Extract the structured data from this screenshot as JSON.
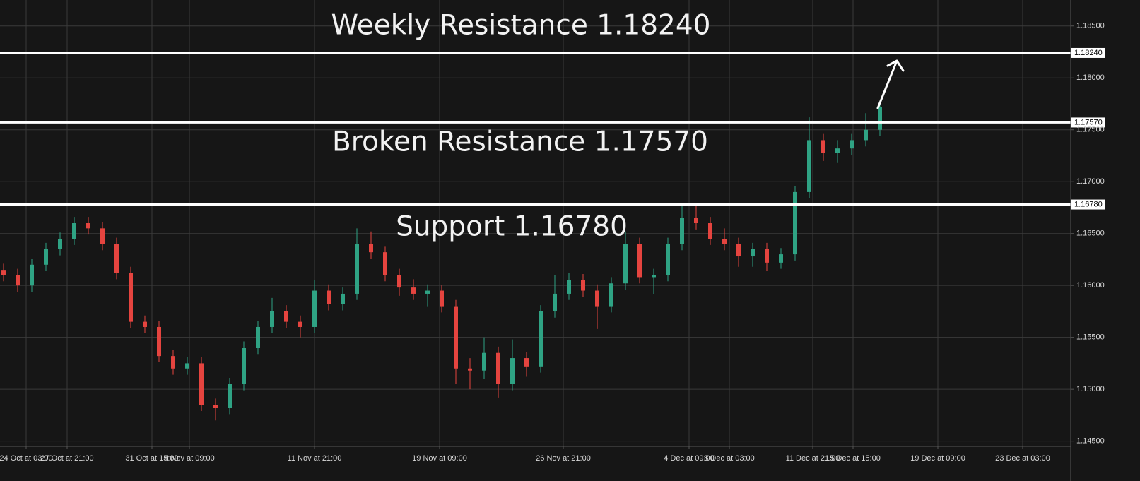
{
  "chart_data": {
    "type": "candlestick",
    "x": [
      0,
      1,
      2,
      3,
      4,
      5,
      6,
      7,
      8,
      9,
      10,
      11,
      12,
      13,
      14,
      15,
      16,
      17,
      18,
      19,
      20,
      21,
      22,
      23,
      24,
      25,
      26,
      27,
      28,
      29,
      30,
      31,
      32,
      33,
      34,
      35,
      36,
      37,
      38,
      39,
      40,
      41,
      42,
      43,
      44,
      45,
      46,
      47,
      48,
      49,
      50,
      51,
      52,
      53,
      54,
      55,
      56,
      57,
      58,
      59,
      60,
      61,
      62
    ],
    "open": [
      1.1615,
      1.161,
      1.16,
      1.162,
      1.1635,
      1.1645,
      1.166,
      1.1655,
      1.164,
      1.1612,
      1.1565,
      1.156,
      1.1532,
      1.152,
      1.1525,
      1.1485,
      1.1482,
      1.1505,
      1.154,
      1.156,
      1.1575,
      1.1565,
      1.156,
      1.1595,
      1.1582,
      1.1592,
      1.164,
      1.1632,
      1.161,
      1.1598,
      1.1592,
      1.1595,
      1.158,
      1.152,
      1.1518,
      1.1535,
      1.1505,
      1.153,
      1.1522,
      1.1575,
      1.1592,
      1.1605,
      1.1595,
      1.158,
      1.1602,
      1.164,
      1.1608,
      1.161,
      1.164,
      1.1665,
      1.166,
      1.1645,
      1.164,
      1.1628,
      1.1635,
      1.1622,
      1.163,
      1.169,
      1.174,
      1.1728,
      1.1732,
      1.174,
      1.175
    ],
    "high": [
      1.1621,
      1.1616,
      1.1626,
      1.1641,
      1.1651,
      1.1666,
      1.1666,
      1.1661,
      1.1646,
      1.1618,
      1.1571,
      1.1566,
      1.1538,
      1.1531,
      1.1531,
      1.1491,
      1.1511,
      1.1546,
      1.1566,
      1.1588,
      1.1581,
      1.1571,
      1.1605,
      1.1601,
      1.1598,
      1.1655,
      1.1652,
      1.1638,
      1.1616,
      1.1606,
      1.1601,
      1.16,
      1.1586,
      1.153,
      1.155,
      1.1541,
      1.1548,
      1.1536,
      1.1581,
      1.161,
      1.1612,
      1.1611,
      1.1601,
      1.1608,
      1.1652,
      1.1646,
      1.1616,
      1.1646,
      1.1678,
      1.1678,
      1.1666,
      1.1655,
      1.1646,
      1.1641,
      1.1641,
      1.1636,
      1.1696,
      1.1762,
      1.1746,
      1.174,
      1.1746,
      1.1766,
      1.1778
    ],
    "low": [
      1.1604,
      1.1594,
      1.1594,
      1.1614,
      1.1629,
      1.1639,
      1.1649,
      1.1634,
      1.1606,
      1.1559,
      1.1554,
      1.1526,
      1.1514,
      1.1514,
      1.1479,
      1.147,
      1.1476,
      1.1499,
      1.1534,
      1.1554,
      1.1559,
      1.155,
      1.1554,
      1.1576,
      1.1576,
      1.1586,
      1.1626,
      1.1604,
      1.159,
      1.1586,
      1.158,
      1.1574,
      1.1505,
      1.15,
      1.151,
      1.1492,
      1.1499,
      1.1512,
      1.1516,
      1.1569,
      1.1586,
      1.1589,
      1.1558,
      1.1574,
      1.1596,
      1.1602,
      1.1592,
      1.1604,
      1.1634,
      1.1654,
      1.1639,
      1.1634,
      1.1618,
      1.1618,
      1.1614,
      1.1616,
      1.1624,
      1.1684,
      1.172,
      1.1718,
      1.1726,
      1.1734,
      1.1744
    ],
    "close": [
      1.161,
      1.16,
      1.162,
      1.1635,
      1.1645,
      1.166,
      1.1655,
      1.164,
      1.1612,
      1.1565,
      1.156,
      1.1532,
      1.152,
      1.1525,
      1.1485,
      1.1482,
      1.1505,
      1.154,
      1.156,
      1.1575,
      1.1565,
      1.156,
      1.1595,
      1.1582,
      1.1592,
      1.164,
      1.1632,
      1.161,
      1.1598,
      1.1592,
      1.1595,
      1.158,
      1.152,
      1.1518,
      1.1535,
      1.1505,
      1.153,
      1.1522,
      1.1575,
      1.1592,
      1.1605,
      1.1595,
      1.158,
      1.1602,
      1.164,
      1.1608,
      1.161,
      1.164,
      1.1665,
      1.166,
      1.1645,
      1.164,
      1.1628,
      1.1635,
      1.1622,
      1.163,
      1.169,
      1.174,
      1.1728,
      1.1732,
      1.174,
      1.175,
      1.1772
    ],
    "up_color": "#2fa384",
    "down_color": "#e5443f",
    "xlim": [
      -0.25,
      75.5
    ],
    "xticks": [
      {
        "value": 1.6,
        "label": "24 Oct at 03:00"
      },
      {
        "value": 4.5,
        "label": "27 Oct at 21:00"
      },
      {
        "value": 10.5,
        "label": "31 Oct at 15:00"
      },
      {
        "value": 13.15,
        "label": "4 Nov at 09:00"
      },
      {
        "value": 22.0,
        "label": "11 Nov at 21:00"
      },
      {
        "value": 30.85,
        "label": "19 Nov at 09:00"
      },
      {
        "value": 39.6,
        "label": "26 Nov at 21:00"
      },
      {
        "value": 48.5,
        "label": "4 Dec at 09:00"
      },
      {
        "value": 51.35,
        "label": "8 Dec at 03:00"
      },
      {
        "value": 57.25,
        "label": "11 Dec at 21:00"
      },
      {
        "value": 60.1,
        "label": "15 Dec at 15:00"
      },
      {
        "value": 66.1,
        "label": "19 Dec at 09:00"
      },
      {
        "value": 72.1,
        "label": "23 Dec at 03:00"
      }
    ],
    "ylim": [
      1.1445,
      1.1875
    ],
    "yticks": [
      {
        "value": 1.145,
        "label": "1.14500"
      },
      {
        "value": 1.15,
        "label": "1.15000"
      },
      {
        "value": 1.155,
        "label": "1.15500"
      },
      {
        "value": 1.16,
        "label": "1.16000"
      },
      {
        "value": 1.165,
        "label": "1.16500"
      },
      {
        "value": 1.17,
        "label": "1.17000"
      },
      {
        "value": 1.175,
        "label": "1.17500"
      },
      {
        "value": 1.18,
        "label": "1.18000"
      },
      {
        "value": 1.185,
        "label": "1.18500"
      }
    ],
    "grid": true,
    "levels": [
      {
        "text": "Weekly Resistance 1.18240",
        "value": 1.1824,
        "tag": "1.18240"
      },
      {
        "text": "Broken Resistance 1.17570",
        "value": 1.1757,
        "tag": "1.17570"
      },
      {
        "text": "Support 1.16780",
        "value": 1.1678,
        "tag": "1.16780"
      }
    ]
  }
}
